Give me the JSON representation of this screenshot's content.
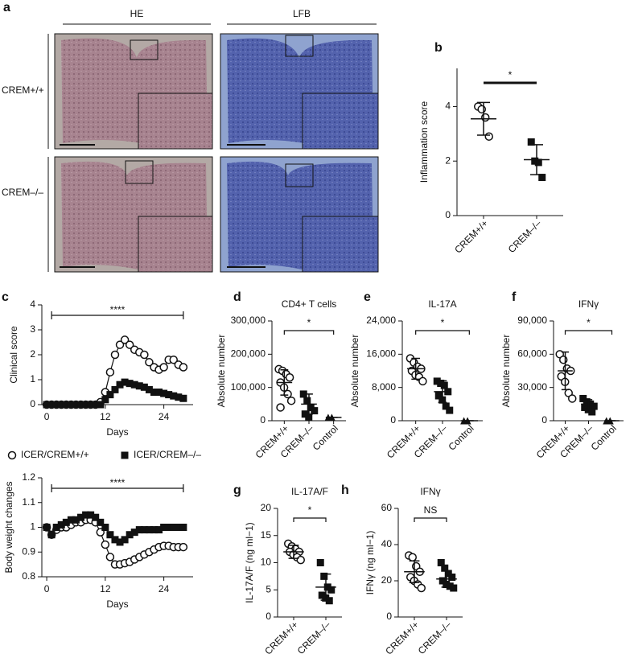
{
  "histology": {
    "panel_label": "a",
    "columns": [
      "HE",
      "LFB"
    ],
    "rows": [
      "CREM+/+",
      "CREM–/–"
    ]
  },
  "chart_data": [
    {
      "panel_label": "b",
      "type": "dotplot",
      "ylabel": "Inflammation score",
      "categories": [
        "CREM+/+",
        "CREM–/–"
      ],
      "ylim": [
        0,
        5.4
      ],
      "yticks": [
        0,
        2,
        4
      ],
      "annotation": "*",
      "groups": [
        {
          "marker": "circle-open",
          "values": [
            4.0,
            3.9,
            3.6,
            2.9
          ],
          "mean": 3.55,
          "sd": 0.6
        },
        {
          "marker": "square",
          "values": [
            2.7,
            2.0,
            1.95,
            1.4
          ],
          "mean": 2.05,
          "sd": 0.55
        }
      ]
    },
    {
      "panel_label": "c",
      "type": "line",
      "ylabel": "Clinical score",
      "xlabel": "Days",
      "x": [
        0,
        1,
        2,
        3,
        4,
        5,
        6,
        7,
        8,
        9,
        10,
        11,
        12,
        13,
        14,
        15,
        16,
        17,
        18,
        19,
        20,
        21,
        22,
        23,
        24,
        25,
        26,
        27,
        28
      ],
      "xlim": [
        -1,
        30
      ],
      "xticks": [
        0,
        12,
        24
      ],
      "ylim": [
        0,
        4
      ],
      "yticks": [
        0,
        1,
        2,
        3,
        4
      ],
      "annotation": "****",
      "series": [
        {
          "name": "ICER/CREM+/+",
          "marker": "circle-open",
          "color": "#111111",
          "values": [
            0,
            0,
            0,
            0,
            0,
            0,
            0,
            0,
            0,
            0,
            0,
            0.1,
            0.5,
            1.3,
            2.0,
            2.4,
            2.6,
            2.4,
            2.2,
            2.1,
            2.0,
            1.7,
            1.5,
            1.4,
            1.5,
            1.8,
            1.8,
            1.6,
            1.5
          ]
        },
        {
          "name": "ICER/CREM–/–",
          "marker": "square",
          "color": "#111111",
          "values": [
            0,
            0,
            0,
            0,
            0,
            0,
            0,
            0,
            0,
            0,
            0,
            0,
            0.2,
            0.4,
            0.6,
            0.8,
            0.9,
            0.85,
            0.8,
            0.75,
            0.7,
            0.6,
            0.5,
            0.5,
            0.45,
            0.4,
            0.35,
            0.3,
            0.25
          ]
        }
      ]
    },
    {
      "type": "line",
      "ylabel": "Body weight changes",
      "xlabel": "Days",
      "x": [
        0,
        1,
        2,
        3,
        4,
        5,
        6,
        7,
        8,
        9,
        10,
        11,
        12,
        13,
        14,
        15,
        16,
        17,
        18,
        19,
        20,
        21,
        22,
        23,
        24,
        25,
        26,
        27,
        28
      ],
      "xlim": [
        -1,
        30
      ],
      "xticks": [
        0,
        12,
        24
      ],
      "ylim": [
        0.8,
        1.2
      ],
      "yticks": [
        0.8,
        0.9,
        1.0,
        1.1,
        1.2
      ],
      "annotation": "****",
      "series": [
        {
          "marker": "circle-open",
          "color": "#111111",
          "values": [
            1.0,
            0.97,
            0.99,
            1.0,
            1.0,
            1.01,
            1.02,
            1.02,
            1.03,
            1.03,
            1.02,
            0.98,
            0.93,
            0.88,
            0.85,
            0.85,
            0.855,
            0.86,
            0.87,
            0.88,
            0.89,
            0.9,
            0.91,
            0.92,
            0.925,
            0.925,
            0.92,
            0.92,
            0.92
          ]
        },
        {
          "marker": "square",
          "color": "#111111",
          "values": [
            1.0,
            0.97,
            1.0,
            1.01,
            1.02,
            1.03,
            1.03,
            1.04,
            1.05,
            1.05,
            1.04,
            1.02,
            1.0,
            0.97,
            0.95,
            0.94,
            0.95,
            0.97,
            0.98,
            0.99,
            0.99,
            0.99,
            0.99,
            0.99,
            1.0,
            1.0,
            1.0,
            1.0,
            1.0
          ]
        }
      ]
    },
    {
      "panel_label": "d",
      "type": "dotplot",
      "title": "CD4+ T cells",
      "ylabel": "Absolute number",
      "categories": [
        "CREM+/+",
        "CREM–/–",
        "Control"
      ],
      "ylim": [
        0,
        300000
      ],
      "annotation": "*",
      "yticks": [
        0,
        {
          "value": 100000,
          "label": "100,000"
        },
        {
          "value": 200000,
          "label": "200,000"
        },
        {
          "value": 300000,
          "label": "300,000"
        }
      ],
      "groups": [
        {
          "marker": "circle-open",
          "values": [
            155000,
            150000,
            140000,
            130000,
            115000,
            100000,
            80000,
            60000,
            40000
          ],
          "mean": 115000,
          "sd": 38000
        },
        {
          "marker": "square",
          "values": [
            80000,
            60000,
            40000,
            30000,
            20000,
            10000
          ],
          "mean": 50000,
          "sd": 30000
        },
        {
          "marker": "triangle",
          "values": [
            10000,
            10000
          ],
          "mean": 10000,
          "sd": 0
        }
      ]
    },
    {
      "panel_label": "e",
      "type": "dotplot",
      "title": "IL-17A",
      "ylabel": "Absolute number",
      "categories": [
        "CREM+/+",
        "CREM–/–",
        "Control"
      ],
      "ylim": [
        0,
        24000
      ],
      "annotation": "*",
      "yticks": [
        0,
        {
          "value": 8000,
          "label": "8,000"
        },
        {
          "value": 16000,
          "label": "16,000"
        },
        {
          "value": 24000,
          "label": "24,000"
        }
      ],
      "groups": [
        {
          "marker": "circle-open",
          "values": [
            15000,
            14000,
            13000,
            12500,
            12000,
            11000,
            10500,
            9500
          ],
          "mean": 12500,
          "sd": 2500
        },
        {
          "marker": "square",
          "values": [
            9500,
            9000,
            8500,
            7000,
            6000,
            5000,
            3500,
            2500
          ],
          "mean": 7000,
          "sd": 2600
        },
        {
          "marker": "triangle",
          "values": [
            0,
            0
          ],
          "mean": 0,
          "sd": 0
        }
      ]
    },
    {
      "panel_label": "f",
      "type": "dotplot",
      "title": "IFNγ",
      "ylabel": "Absolute number",
      "categories": [
        "CREM+/+",
        "CREM–/–",
        "Control"
      ],
      "ylim": [
        0,
        90000
      ],
      "annotation": "*",
      "yticks": [
        0,
        {
          "value": 30000,
          "label": "30,000"
        },
        {
          "value": 60000,
          "label": "60,000"
        },
        {
          "value": 90000,
          "label": "90,000"
        }
      ],
      "groups": [
        {
          "marker": "circle-open",
          "values": [
            60000,
            55000,
            47000,
            45000,
            40000,
            35000,
            25000,
            20000
          ],
          "mean": 45000,
          "sd": 17000
        },
        {
          "marker": "square",
          "values": [
            20000,
            17000,
            15000,
            13000,
            12000,
            10000,
            8000
          ],
          "mean": 15000,
          "sd": 4000
        },
        {
          "marker": "triangle",
          "values": [
            0,
            0
          ],
          "mean": 0,
          "sd": 0
        }
      ]
    },
    {
      "panel_label": "g",
      "type": "dotplot",
      "title": "IL-17A/F",
      "ylabel": "IL-17A/F (ng ml−1)",
      "categories": [
        "CREM+/+",
        "CREM–/–"
      ],
      "ylim": [
        0,
        20
      ],
      "yticks": [
        0,
        5,
        10,
        15,
        20
      ],
      "annotation": "*",
      "groups": [
        {
          "marker": "circle-open",
          "values": [
            13.5,
            13,
            12.5,
            12,
            12,
            11.5,
            11,
            10.5
          ],
          "mean": 12,
          "sd": 1.2
        },
        {
          "marker": "square",
          "values": [
            10,
            7.5,
            5.5,
            5,
            4,
            3.5,
            3
          ],
          "mean": 5.5,
          "sd": 2.4
        }
      ]
    },
    {
      "panel_label": "h",
      "type": "dotplot",
      "title": "IFNγ",
      "ylabel": "IFNγ (ng ml−1)",
      "categories": [
        "CREM+/+",
        "CREM–/–"
      ],
      "ylim": [
        0,
        60
      ],
      "yticks": [
        0,
        20,
        40,
        60
      ],
      "annotation": "NS",
      "groups": [
        {
          "marker": "circle-open",
          "values": [
            34,
            33,
            28,
            25,
            22,
            20,
            18,
            16
          ],
          "mean": 25,
          "sd": 6
        },
        {
          "marker": "square",
          "values": [
            30,
            27,
            24,
            22,
            20,
            18,
            17,
            16
          ],
          "mean": 21,
          "sd": 4.5
        }
      ]
    }
  ]
}
